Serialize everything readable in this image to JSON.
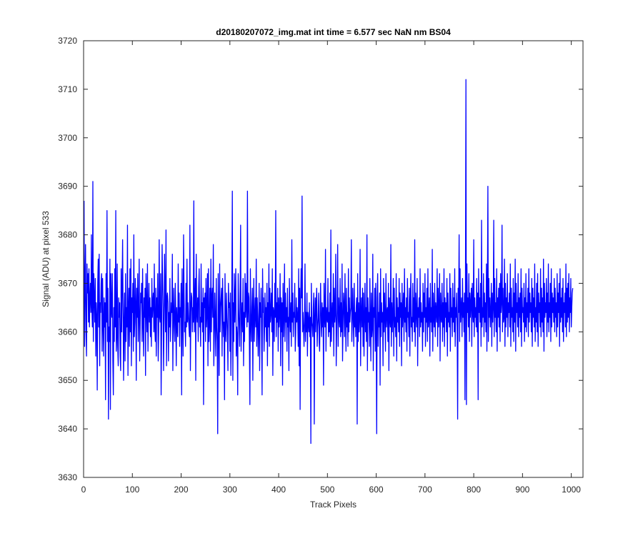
{
  "figure": {
    "background": "#ffffff"
  },
  "chart_data": {
    "type": "line",
    "title": "d20180207072_img.mat int time = 6.577 sec  NaN nm BS04",
    "xlabel": "Track Pixels",
    "ylabel": "Signal (ADU) at pixel 533",
    "xlim": [
      0,
      1024
    ],
    "ylim": [
      3630,
      3720
    ],
    "xticks": [
      0,
      100,
      200,
      300,
      400,
      500,
      600,
      700,
      800,
      900,
      1000
    ],
    "yticks": [
      3630,
      3640,
      3650,
      3660,
      3670,
      3680,
      3690,
      3700,
      3710,
      3720
    ],
    "grid": false,
    "line_color": "#0000ff",
    "axis_color": "#262626",
    "series": [
      {
        "x_start": 1,
        "x_step": 1,
        "values": [
          3687,
          3657,
          3670,
          3678,
          3660,
          3655,
          3674,
          3668,
          3672,
          3662,
          3673,
          3661,
          3667,
          3670,
          3664,
          3680,
          3665,
          3661,
          3691,
          3658,
          3672,
          3667,
          3662,
          3671,
          3655,
          3666,
          3663,
          3648,
          3670,
          3675,
          3661,
          3676,
          3653,
          3666,
          3664,
          3670,
          3672,
          3656,
          3671,
          3662,
          3655,
          3667,
          3661,
          3666,
          3646,
          3672,
          3662,
          3685,
          3658,
          3669,
          3642,
          3661,
          3658,
          3675,
          3644,
          3672,
          3665,
          3663,
          3672,
          3654,
          3647,
          3665,
          3658,
          3673,
          3661,
          3685,
          3656,
          3659,
          3674,
          3657,
          3653,
          3667,
          3663,
          3666,
          3655,
          3652,
          3673,
          3660,
          3669,
          3679,
          3664,
          3650,
          3663,
          3668,
          3654,
          3672,
          3658,
          3665,
          3661,
          3682,
          3651,
          3664,
          3669,
          3657,
          3673,
          3660,
          3675,
          3653,
          3667,
          3664,
          3670,
          3656,
          3680,
          3659,
          3662,
          3671,
          3666,
          3650,
          3669,
          3663,
          3672,
          3658,
          3664,
          3675,
          3654,
          3661,
          3668,
          3666,
          3670,
          3658,
          3673,
          3662,
          3655,
          3667,
          3663,
          3669,
          3651,
          3672,
          3665,
          3660,
          3674,
          3656,
          3664,
          3670,
          3662,
          3667,
          3659,
          3665,
          3657,
          3671,
          3663,
          3666,
          3668,
          3660,
          3674,
          3661,
          3658,
          3669,
          3655,
          3667,
          3663,
          3672,
          3654,
          3660,
          3679,
          3663,
          3662,
          3672,
          3647,
          3660,
          3678,
          3671,
          3665,
          3652,
          3661,
          3676,
          3667,
          3660,
          3681,
          3653,
          3667,
          3668,
          3666,
          3654,
          3664,
          3661,
          3671,
          3658,
          3662,
          3666,
          3664,
          3676,
          3652,
          3663,
          3669,
          3661,
          3658,
          3670,
          3664,
          3653,
          3665,
          3661,
          3659,
          3674,
          3662,
          3668,
          3657,
          3665,
          3663,
          3670,
          3647,
          3673,
          3664,
          3655,
          3680,
          3668,
          3660,
          3662,
          3657,
          3670,
          3661,
          3675,
          3662,
          3666,
          3663,
          3661,
          3659,
          3682,
          3652,
          3664,
          3668,
          3667,
          3660,
          3665,
          3662,
          3687,
          3660,
          3666,
          3671,
          3650,
          3676,
          3664,
          3662,
          3667,
          3658,
          3669,
          3673,
          3661,
          3663,
          3657,
          3674,
          3662,
          3666,
          3660,
          3669,
          3645,
          3667,
          3665,
          3668,
          3658,
          3671,
          3661,
          3664,
          3672,
          3653,
          3673,
          3658,
          3662,
          3669,
          3656,
          3675,
          3660,
          3667,
          3669,
          3663,
          3678,
          3653,
          3659,
          3668,
          3662,
          3655,
          3671,
          3661,
          3658,
          3639,
          3672,
          3663,
          3651,
          3674,
          3660,
          3665,
          3667,
          3669,
          3655,
          3671,
          3664,
          3659,
          3662,
          3646,
          3672,
          3661,
          3658,
          3668,
          3663,
          3660,
          3652,
          3670,
          3665,
          3666,
          3656,
          3668,
          3651,
          3660,
          3670,
          3689,
          3650,
          3666,
          3658,
          3672,
          3662,
          3667,
          3673,
          3655,
          3661,
          3659,
          3647,
          3672,
          3665,
          3661,
          3657,
          3669,
          3682,
          3656,
          3663,
          3666,
          3660,
          3671,
          3653,
          3664,
          3658,
          3672,
          3663,
          3670,
          3665,
          3661,
          3689,
          3662,
          3668,
          3667,
          3657,
          3645,
          3673,
          3662,
          3658,
          3665,
          3669,
          3650,
          3664,
          3671,
          3658,
          3663,
          3667,
          3661,
          3675,
          3657,
          3667,
          3663,
          3655,
          3661,
          3670,
          3652,
          3666,
          3663,
          3669,
          3659,
          3647,
          3673,
          3664,
          3667,
          3656,
          3660,
          3668,
          3661,
          3665,
          3658,
          3670,
          3653,
          3666,
          3661,
          3674,
          3657,
          3669,
          3662,
          3664,
          3668,
          3660,
          3673,
          3651,
          3665,
          3664,
          3658,
          3670,
          3663,
          3685,
          3659,
          3666,
          3662,
          3669,
          3656,
          3667,
          3661,
          3664,
          3672,
          3653,
          3667,
          3660,
          3666,
          3649,
          3670,
          3659,
          3663,
          3674,
          3658,
          3668,
          3662,
          3665,
          3656,
          3669,
          3661,
          3663,
          3652,
          3671,
          3664,
          3660,
          3666,
          3657,
          3679,
          3662,
          3668,
          3659,
          3664,
          3663,
          3670,
          3656,
          3660,
          3667,
          3662,
          3665,
          3663,
          3657,
          3673,
          3653,
          3669,
          3644,
          3666,
          3673,
          3667,
          3688,
          3660,
          3664,
          3661,
          3657,
          3662,
          3674,
          3658,
          3664,
          3660,
          3668,
          3655,
          3664,
          3662,
          3660,
          3666,
          3659,
          3663,
          3637,
          3670,
          3662,
          3661,
          3659,
          3665,
          3668,
          3641,
          3663,
          3667,
          3660,
          3666,
          3669,
          3657,
          3661,
          3663,
          3668,
          3658,
          3656,
          3664,
          3670,
          3662,
          3659,
          3666,
          3661,
          3665,
          3649,
          3670,
          3663,
          3661,
          3677,
          3656,
          3665,
          3663,
          3662,
          3671,
          3659,
          3664,
          3660,
          3668,
          3657,
          3681,
          3658,
          3663,
          3666,
          3661,
          3672,
          3655,
          3669,
          3662,
          3664,
          3676,
          3653,
          3660,
          3665,
          3678,
          3657,
          3667,
          3663,
          3661,
          3671,
          3659,
          3666,
          3660,
          3674,
          3654,
          3662,
          3668,
          3665,
          3659,
          3672,
          3663,
          3656,
          3669,
          3661,
          3664,
          3657,
          3673,
          3660,
          3667,
          3662,
          3664,
          3665,
          3679,
          3658,
          3662,
          3669,
          3663,
          3657,
          3670,
          3661,
          3664,
          3659,
          3665,
          3667,
          3641,
          3672,
          3658,
          3666,
          3660,
          3663,
          3677,
          3653,
          3664,
          3667,
          3661,
          3669,
          3657,
          3668,
          3655,
          3663,
          3670,
          3660,
          3665,
          3658,
          3680,
          3652,
          3667,
          3662,
          3664,
          3657,
          3671,
          3663,
          3654,
          3668,
          3659,
          3661,
          3676,
          3652,
          3665,
          3663,
          3669,
          3656,
          3670,
          3660,
          3639,
          3667,
          3672,
          3657,
          3664,
          3661,
          3668,
          3649,
          3673,
          3659,
          3666,
          3662,
          3664,
          3653,
          3671,
          3660,
          3668,
          3663,
          3656,
          3672,
          3661,
          3664,
          3665,
          3658,
          3670,
          3652,
          3667,
          3663,
          3661,
          3678,
          3657,
          3666,
          3660,
          3664,
          3671,
          3655,
          3669,
          3661,
          3663,
          3659,
          3672,
          3654,
          3667,
          3662,
          3665,
          3660,
          3671,
          3657,
          3668,
          3663,
          3666,
          3653,
          3670,
          3661,
          3664,
          3668,
          3658,
          3673,
          3662,
          3665,
          3660,
          3667,
          3656,
          3671,
          3663,
          3664,
          3659,
          3669,
          3655,
          3666,
          3672,
          3661,
          3663,
          3658,
          3670,
          3662,
          3667,
          3660,
          3679,
          3657,
          3668,
          3664,
          3661,
          3671,
          3653,
          3665,
          3663,
          3667,
          3659,
          3673,
          3661,
          3666,
          3662,
          3664,
          3656,
          3670,
          3660,
          3668,
          3663,
          3672,
          3657,
          3665,
          3662,
          3669,
          3658,
          3673,
          3661,
          3664,
          3667,
          3655,
          3670,
          3662,
          3665,
          3660,
          3677,
          3656,
          3668,
          3663,
          3661,
          3670,
          3659,
          3666,
          3664,
          3662,
          3673,
          3657,
          3669,
          3661,
          3665,
          3672,
          3654,
          3668,
          3663,
          3662,
          3670,
          3658,
          3666,
          3661,
          3673,
          3657,
          3667,
          3663,
          3666,
          3660,
          3671,
          3655,
          3668,
          3662,
          3664,
          3661,
          3672,
          3656,
          3669,
          3663,
          3665,
          3659,
          3670,
          3662,
          3667,
          3660,
          3673,
          3657,
          3665,
          3663,
          3668,
          3661,
          3642,
          3669,
          3664,
          3680,
          3658,
          3673,
          3662,
          3665,
          3667,
          3659,
          3671,
          3663,
          3666,
          3660,
          3668,
          3646,
          3669,
          3712,
          3645,
          3674,
          3664,
          3667,
          3661,
          3672,
          3658,
          3668,
          3663,
          3666,
          3669,
          3657,
          3670,
          3664,
          3662,
          3679,
          3659,
          3667,
          3663,
          3665,
          3661,
          3671,
          3660,
          3668,
          3646,
          3673,
          3664,
          3667,
          3662,
          3670,
          3657,
          3683,
          3661,
          3665,
          3663,
          3672,
          3659,
          3668,
          3662,
          3666,
          3660,
          3674,
          3656,
          3669,
          3690,
          3658,
          3671,
          3663,
          3667,
          3661,
          3664,
          3670,
          3657,
          3668,
          3662,
          3665,
          3683,
          3659,
          3671,
          3663,
          3666,
          3660,
          3673,
          3656,
          3667,
          3663,
          3669,
          3661,
          3670,
          3658,
          3672,
          3664,
          3666,
          3682,
          3660,
          3669,
          3662,
          3663,
          3675,
          3657,
          3670,
          3661,
          3667,
          3663,
          3672,
          3659,
          3666,
          3664,
          3668,
          3661,
          3674,
          3657,
          3669,
          3663,
          3665,
          3660,
          3671,
          3658,
          3668,
          3662,
          3675,
          3656,
          3670,
          3664,
          3666,
          3661,
          3672,
          3659,
          3667,
          3663,
          3668,
          3660,
          3673,
          3657,
          3669,
          3664,
          3665,
          3662,
          3670,
          3658,
          3667,
          3661,
          3672,
          3660,
          3666,
          3663,
          3669,
          3659,
          3673,
          3662,
          3668,
          3664,
          3666,
          3660,
          3671,
          3657,
          3669,
          3663,
          3667,
          3661,
          3674,
          3658,
          3665,
          3662,
          3670,
          3660,
          3672,
          3657,
          3668,
          3664,
          3666,
          3661,
          3673,
          3659,
          3669,
          3662,
          3667,
          3660,
          3675,
          3656,
          3670,
          3663,
          3666,
          3664,
          3671,
          3659,
          3668,
          3662,
          3674,
          3660,
          3666,
          3663,
          3670,
          3658,
          3673,
          3661,
          3668,
          3664,
          3667,
          3662,
          3671,
          3660,
          3669,
          3663,
          3666,
          3659,
          3672,
          3661,
          3668,
          3664,
          3670,
          3657,
          3673,
          3662,
          3667,
          3663,
          3669,
          3660,
          3671,
          3658,
          3666,
          3664,
          3668,
          3661,
          3674,
          3659,
          3669,
          3662,
          3670,
          3663,
          3672,
          3660,
          3667,
          3664,
          3671,
          3661,
          3665,
          3668,
          3669
        ]
      }
    ]
  }
}
